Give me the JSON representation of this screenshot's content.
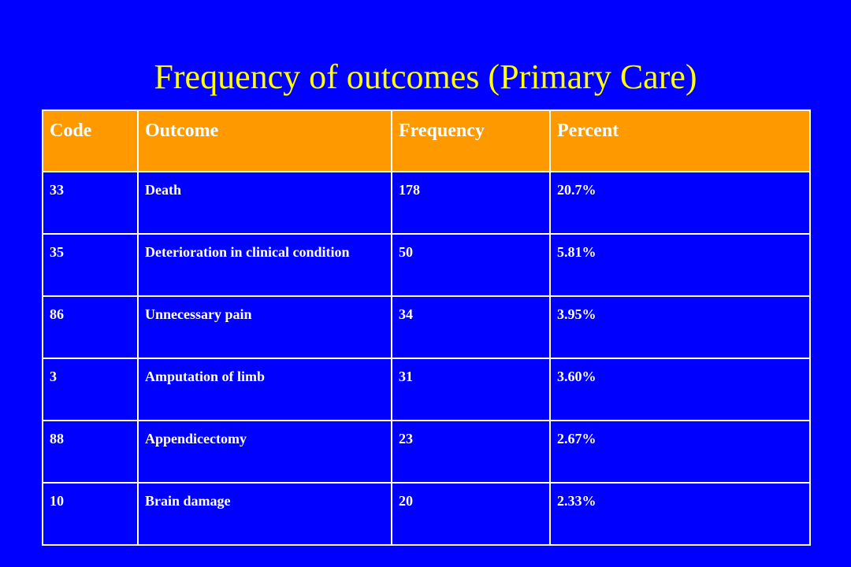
{
  "slide": {
    "title": "Frequency of outcomes (Primary Care)"
  },
  "colors": {
    "background": "#0000ff",
    "title": "#ffff00",
    "header_fill": "#ff9900",
    "text": "#ffffff"
  },
  "table": {
    "headers": [
      "Code",
      "Outcome",
      "Frequency",
      "Percent"
    ],
    "rows": [
      [
        "33",
        "Death",
        "178",
        "20.7%"
      ],
      [
        "35",
        "Deterioration in clinical condition",
        "50",
        "5.81%"
      ],
      [
        "86",
        "Unnecessary pain",
        "34",
        "3.95%"
      ],
      [
        "3",
        "Amputation of limb",
        "31",
        "3.60%"
      ],
      [
        "88",
        "Appendicectomy",
        "23",
        "2.67%"
      ],
      [
        "10",
        "Brain damage",
        "20",
        "2.33%"
      ]
    ]
  }
}
